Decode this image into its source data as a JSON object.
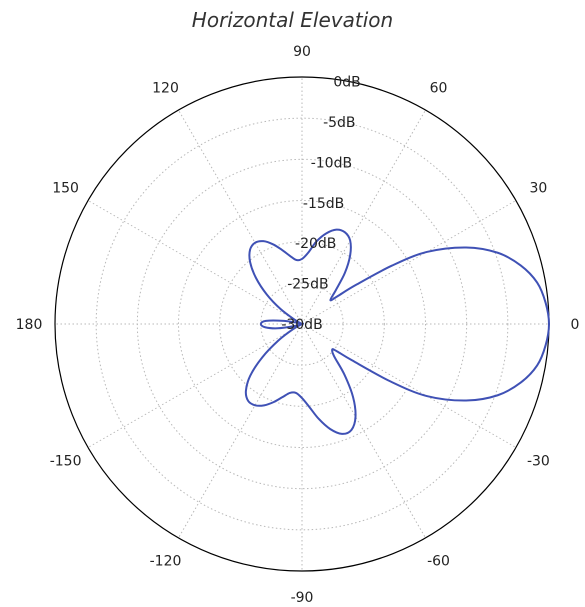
{
  "chart_data": {
    "type": "polar-line",
    "title": "Horizontal Elevation",
    "radial_axis": {
      "range_db": [
        -30,
        0
      ],
      "ticks": [
        0,
        -5,
        -10,
        -15,
        -20,
        -25,
        -30
      ],
      "tick_labels": [
        "0dB",
        "-5dB",
        "-10dB",
        "-15dB",
        "-20dB",
        "-25dB",
        "-30dB"
      ]
    },
    "angular_axis": {
      "unit": "degrees",
      "ticks": [
        0,
        30,
        60,
        90,
        120,
        150,
        180,
        -150,
        -120,
        -90,
        -60,
        -30
      ],
      "tick_labels": [
        "0",
        "30",
        "60",
        "90",
        "120",
        "150",
        "180",
        "-150",
        "-120",
        "-90",
        "-60",
        "-30"
      ]
    },
    "grid": true,
    "series": [
      {
        "color": "#3f51b5",
        "angles_deg": [
          0,
          5,
          10,
          15,
          20,
          25,
          30,
          33,
          36,
          38,
          40,
          45,
          50,
          55,
          60,
          65,
          70,
          75,
          80,
          85,
          90,
          95,
          100,
          105,
          110,
          115,
          120,
          125,
          130,
          135,
          140,
          145,
          150,
          155,
          160,
          165,
          170,
          175,
          180,
          -175,
          -170,
          -165,
          -160,
          -155,
          -150,
          -145,
          -140,
          -135,
          -130,
          -125,
          -120,
          -115,
          -110,
          -105,
          -100,
          -95,
          -90,
          -85,
          -80,
          -75,
          -70,
          -65,
          -60,
          -55,
          -50,
          -45,
          -40,
          -38,
          -36,
          -33,
          -30,
          -25,
          -20,
          -15,
          -10,
          -5
        ],
        "values_db": [
          0,
          -0.3,
          -1,
          -2.5,
          -4.7,
          -8,
          -12.5,
          -17,
          -22,
          -24.5,
          -25.5,
          -24.2,
          -21.9,
          -19.8,
          -18.3,
          -17.7,
          -17.8,
          -18.6,
          -19.8,
          -21.3,
          -22.1,
          -22.2,
          -21.6,
          -20.7,
          -19.7,
          -18.9,
          -18.6,
          -19.0,
          -20.2,
          -22.1,
          -24.4,
          -26.8,
          -29.0,
          -30,
          -30,
          -29.5,
          -27.8,
          -25.6,
          -25.0,
          -25.5,
          -27.0,
          -29.0,
          -30,
          -30,
          -28.8,
          -26.5,
          -23.7,
          -21.1,
          -19.4,
          -18.6,
          -18.6,
          -19.1,
          -19.9,
          -20.8,
          -21.5,
          -21.6,
          -21.0,
          -19.9,
          -18.3,
          -16.8,
          -15.8,
          -15.8,
          -17.0,
          -19.2,
          -22.0,
          -24.5,
          -25.2,
          -24.6,
          -22.5,
          -17.2,
          -12.5,
          -8.0,
          -4.7,
          -2.5,
          -1.0,
          -0.3
        ]
      }
    ]
  }
}
